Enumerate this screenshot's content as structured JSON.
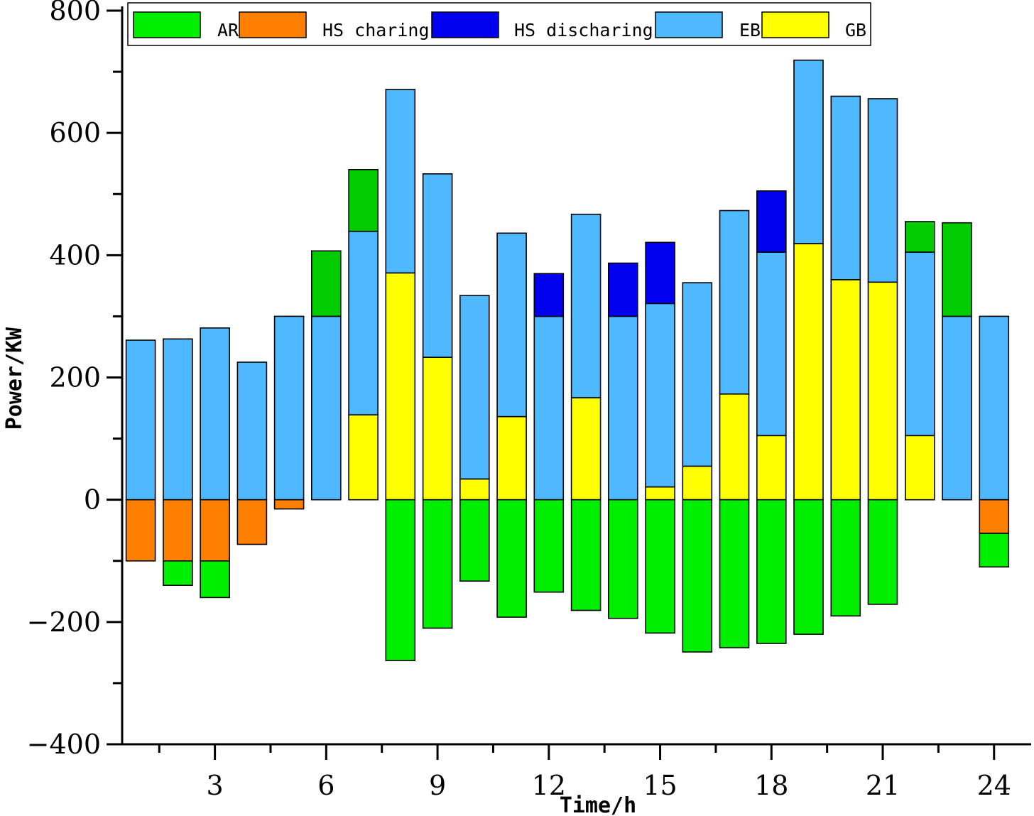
{
  "chart_data": {
    "type": "bar",
    "stacked": true,
    "title": "",
    "xlabel": "Time/h",
    "ylabel": "Power/KW",
    "ylim": [
      -400,
      800
    ],
    "yticks": [
      -400,
      -200,
      0,
      200,
      400,
      600,
      800
    ],
    "xlim": [
      0.5,
      25
    ],
    "xticks": [
      3,
      6,
      9,
      12,
      15,
      18,
      21,
      24
    ],
    "x": [
      1,
      2,
      3,
      4,
      5,
      6,
      7,
      8,
      9,
      10,
      11,
      12,
      13,
      14,
      15,
      16,
      17,
      18,
      19,
      20,
      21,
      22,
      23,
      24
    ],
    "grid": false,
    "legend_position": "top",
    "series": [
      {
        "name": "AR",
        "color": "#00ee00",
        "values": [
          0,
          -40,
          -60,
          0,
          0,
          0,
          0,
          -263,
          -210,
          -133,
          -192,
          -151,
          -181,
          -194,
          -218,
          -249,
          -242,
          -235,
          -220,
          -190,
          -171,
          0,
          0,
          -55
        ]
      },
      {
        "name": "HS charing",
        "color": "#ff8000",
        "values": [
          -100,
          -100,
          -100,
          -73,
          -15,
          0,
          0,
          0,
          0,
          0,
          0,
          0,
          0,
          0,
          0,
          0,
          0,
          0,
          0,
          0,
          0,
          0,
          0,
          -55
        ]
      },
      {
        "name": "HS discharing",
        "color": "#0000ee",
        "values": [
          0,
          0,
          0,
          0,
          0,
          0,
          0,
          0,
          0,
          0,
          0,
          70,
          0,
          87,
          100,
          0,
          0,
          100,
          0,
          0,
          0,
          0,
          0,
          0
        ]
      },
      {
        "name": "EB",
        "color": "#4fb9ff",
        "values": [
          261,
          263,
          281,
          225,
          300,
          300,
          300,
          300,
          300,
          300,
          300,
          300,
          300,
          300,
          300,
          300,
          300,
          300,
          300,
          300,
          300,
          300,
          300,
          300
        ]
      },
      {
        "name": "GB",
        "color": "#ffff00",
        "values": [
          0,
          0,
          0,
          0,
          0,
          0,
          139,
          371,
          233,
          34,
          136,
          0,
          167,
          0,
          21,
          55,
          173,
          105,
          419,
          360,
          356,
          105,
          0,
          0
        ]
      }
    ],
    "extra_ar_positive": {
      "name": "AR",
      "color": "#00cc00",
      "values": [
        0,
        0,
        0,
        0,
        0,
        107,
        101,
        0,
        0,
        0,
        0,
        0,
        0,
        0,
        0,
        0,
        0,
        0,
        0,
        0,
        0,
        50,
        153,
        0
      ]
    }
  }
}
